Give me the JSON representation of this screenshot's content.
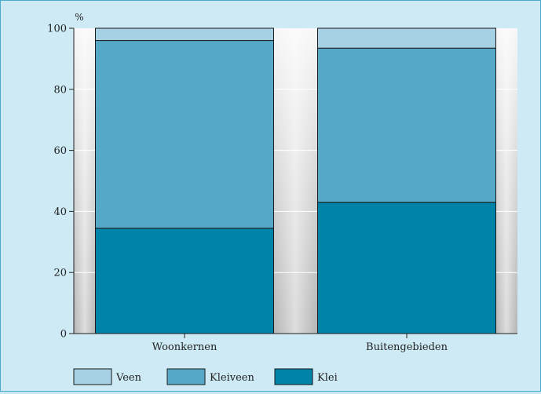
{
  "chart_data": {
    "type": "bar",
    "stacked": true,
    "title": "",
    "xlabel": "",
    "ylabel": "%",
    "ylim": [
      0,
      100
    ],
    "yticks": [
      0,
      20,
      40,
      60,
      80,
      100
    ],
    "grid": true,
    "legend_position": "bottom-left",
    "categories": [
      "Woonkernen",
      "Buitengebieden"
    ],
    "series": [
      {
        "name": "Klei",
        "values": [
          34.5,
          43
        ],
        "color": "#0083a8"
      },
      {
        "name": "Kleiveen",
        "values": [
          61.5,
          50.5
        ],
        "color": "#56a8c8"
      },
      {
        "name": "Veen",
        "values": [
          4,
          6.5
        ],
        "color": "#a6d0e3"
      }
    ],
    "legend_order": [
      "Veen",
      "Kleiveen",
      "Klei"
    ]
  }
}
